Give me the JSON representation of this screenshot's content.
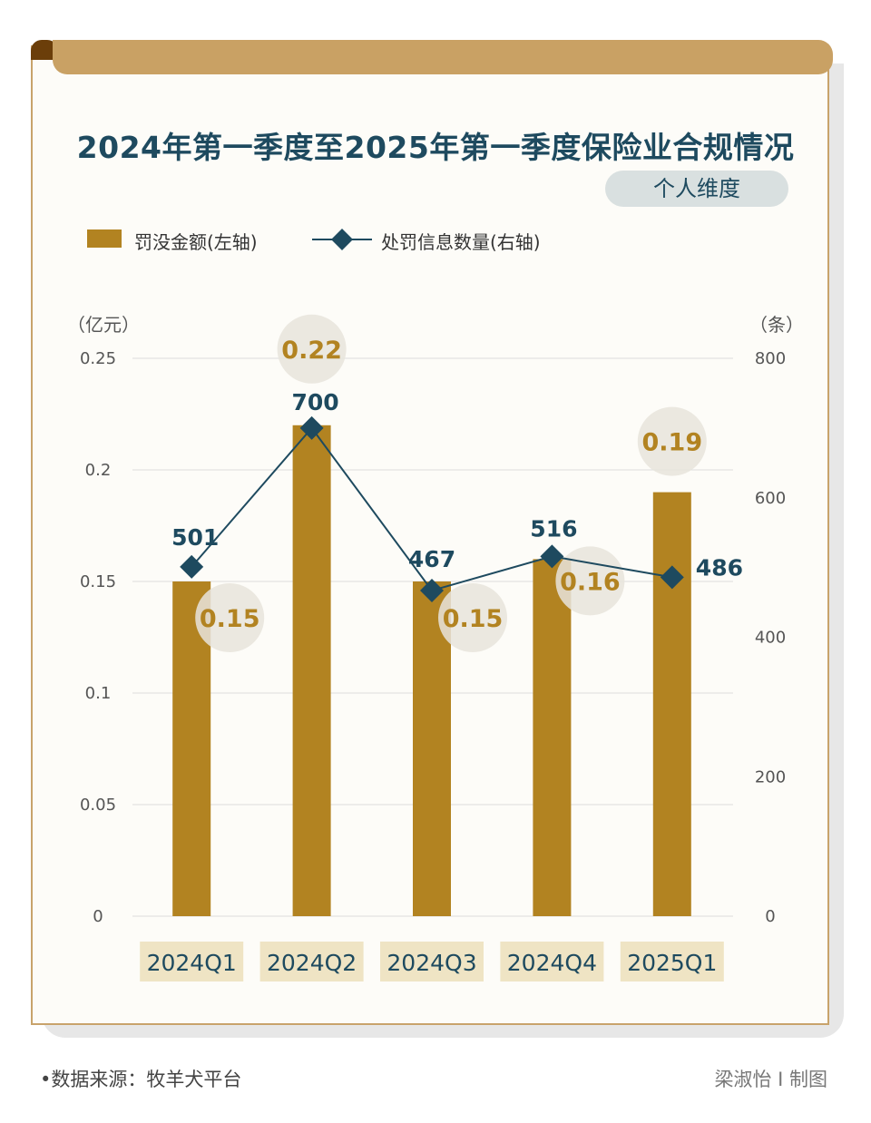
{
  "title": "2024年第一季度至2025年第一季度保险业合规情况",
  "subtitle_pill": "个人维度",
  "legend": {
    "bar_label": "罚没金额(左轴)",
    "line_label": "处罚信息数量(右轴)"
  },
  "units": {
    "left": "（亿元）",
    "right": "（条）"
  },
  "footer": {
    "source": "•数据来源：牧羊犬平台",
    "credit": "梁淑怡 I 制图"
  },
  "colors": {
    "bar": "#b28321",
    "line": "#1e4a5f",
    "title": "#1e4a5f",
    "accent_bar": "#c9a164"
  },
  "chart_data": {
    "type": "bar",
    "categories": [
      "2024Q1",
      "2024Q2",
      "2024Q3",
      "2024Q4",
      "2025Q1"
    ],
    "series": [
      {
        "name": "罚没金额(左轴)",
        "type": "bar",
        "axis": "left",
        "values": [
          0.15,
          0.22,
          0.15,
          0.16,
          0.19
        ]
      },
      {
        "name": "处罚信息数量(右轴)",
        "type": "line",
        "axis": "right",
        "values": [
          501,
          700,
          467,
          516,
          486
        ]
      }
    ],
    "y_left": {
      "ylim": [
        0,
        0.25
      ],
      "ticks": [
        0,
        0.05,
        0.1,
        0.15,
        0.2,
        0.25
      ],
      "tick_labels": [
        "0",
        "0.05",
        "0.1",
        "0.15",
        "0.2",
        "0.25"
      ]
    },
    "y_right": {
      "ylim": [
        0,
        800
      ],
      "ticks": [
        0,
        200,
        400,
        600,
        800
      ],
      "tick_labels": [
        "0",
        "200",
        "400",
        "600",
        "800"
      ]
    },
    "grid": true,
    "legend_position": "top-left"
  }
}
